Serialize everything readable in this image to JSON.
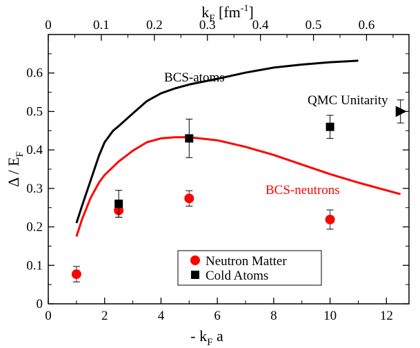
{
  "chart_data": {
    "type": "scatter",
    "xlabel": "- k",
    "xlabel_sub": "F",
    "xlabel_tail": " a",
    "ylabel": "Δ / E",
    "ylabel_sub": "F",
    "top_xlabel": "k",
    "top_xlabel_sub": "F",
    "top_xlabel_unit": " [fm",
    "top_xlabel_sup": "-1",
    "top_xlabel_close": "]",
    "xlim": [
      0,
      12.8
    ],
    "ylim": [
      0,
      0.7
    ],
    "top_xlim": [
      0,
      0.68
    ],
    "x_ticks": [
      "0",
      "2",
      "4",
      "6",
      "8",
      "10",
      "12"
    ],
    "y_ticks": [
      "0",
      "0.1",
      "0.2",
      "0.3",
      "0.4",
      "0.5",
      "0.6"
    ],
    "top_ticks": [
      "0",
      "0.1",
      "0.2",
      "0.3",
      "0.4",
      "0.5",
      "0.6"
    ],
    "curves": [
      {
        "name": "BCS-atoms",
        "color": "#000000",
        "label_text": "BCS-atoms",
        "x": [
          1.0,
          1.2,
          1.5,
          1.8,
          2.0,
          2.3,
          2.5,
          3.0,
          3.5,
          4.0,
          4.5,
          5.0,
          6.0,
          7.0,
          8.0,
          9.0,
          10.0,
          11.0
        ],
        "y": [
          0.21,
          0.255,
          0.32,
          0.385,
          0.42,
          0.45,
          0.462,
          0.495,
          0.527,
          0.547,
          0.56,
          0.57,
          0.585,
          0.601,
          0.614,
          0.622,
          0.628,
          0.632
        ]
      },
      {
        "name": "BCS-neutrons",
        "color": "#ff0000",
        "label_text": "BCS-neutrons",
        "x": [
          1.0,
          1.2,
          1.5,
          1.8,
          2.0,
          2.5,
          3.0,
          3.5,
          4.0,
          4.5,
          5.0,
          6.0,
          7.0,
          8.0,
          9.0,
          10.0,
          11.0,
          12.5
        ],
        "y": [
          0.175,
          0.22,
          0.275,
          0.315,
          0.335,
          0.37,
          0.398,
          0.42,
          0.43,
          0.433,
          0.433,
          0.425,
          0.408,
          0.387,
          0.362,
          0.337,
          0.315,
          0.285
        ]
      }
    ],
    "series": [
      {
        "name": "Neutron Matter",
        "marker": "circle",
        "color": "#ff0000",
        "points": [
          {
            "x": 1.0,
            "y": 0.077,
            "err": 0.02
          },
          {
            "x": 2.5,
            "y": 0.243,
            "err": 0.018
          },
          {
            "x": 5.0,
            "y": 0.274,
            "err": 0.02
          },
          {
            "x": 10.0,
            "y": 0.219,
            "err": 0.025
          }
        ]
      },
      {
        "name": "Cold Atoms",
        "marker": "square",
        "color": "#000000",
        "points": [
          {
            "x": 2.5,
            "y": 0.26,
            "err": 0.035
          },
          {
            "x": 5.0,
            "y": 0.43,
            "err": 0.05
          },
          {
            "x": 10.0,
            "y": 0.46,
            "err": 0.03
          }
        ]
      }
    ],
    "qmc_unitarity": {
      "label": "QMC Unitarity",
      "x": 12.5,
      "y": 0.5,
      "err": 0.03,
      "marker": "triangle-right",
      "color": "#000000"
    },
    "legend": {
      "position": "bottom-center",
      "entries": [
        "Neutron Matter",
        "Cold Atoms"
      ]
    }
  }
}
